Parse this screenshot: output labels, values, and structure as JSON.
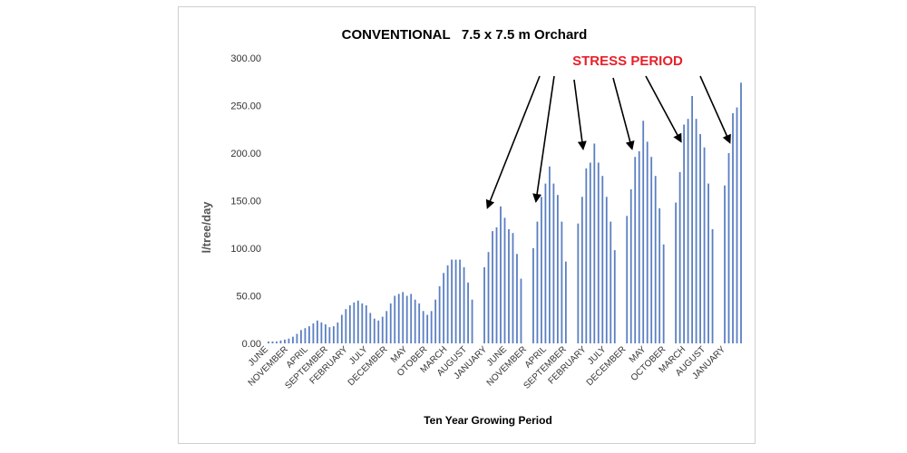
{
  "chart_data": {
    "type": "bar",
    "title": "CONVENTIONAL   7.5 x 7.5 m Orchard",
    "xlabel": "Ten Year Growing Period",
    "ylabel": "l/tree/day",
    "ylim": [
      0,
      300
    ],
    "yticks": [
      "0.00",
      "50.00",
      "100.00",
      "150.00",
      "200.00",
      "250.00",
      "300.00"
    ],
    "grid": false,
    "legend": "none",
    "bar_color": "#5b7fc2",
    "xtick_labels": [
      "JUNE",
      "NOVEMBER",
      "APRIL",
      "SEPTEMBER",
      "FEBRUARY",
      "JULY",
      "DECEMBER",
      "MAY",
      "OTOBER",
      "MARCH",
      "AUGUST",
      "JANUARY",
      "JUNE",
      "NOVEMBER",
      "APRIL",
      "SEPTEMBER",
      "FEBRUARY",
      "JULY",
      "DECEMBER",
      "MAY",
      "OCTOBER",
      "MARCH",
      "AUGUST",
      "JANUARY"
    ],
    "values": [
      2,
      2,
      2,
      3,
      4,
      5,
      7,
      10,
      14,
      16,
      18,
      21,
      24,
      22,
      20,
      17,
      18,
      22,
      30,
      36,
      40,
      43,
      45,
      42,
      40,
      32,
      26,
      24,
      28,
      34,
      42,
      50,
      52,
      54,
      50,
      52,
      46,
      42,
      34,
      30,
      34,
      46,
      60,
      74,
      82,
      88,
      88,
      88,
      80,
      64,
      46,
      0,
      0,
      80,
      96,
      118,
      122,
      144,
      132,
      120,
      116,
      94,
      68,
      0,
      0,
      100,
      128,
      154,
      168,
      186,
      168,
      156,
      128,
      86,
      0,
      0,
      126,
      154,
      184,
      190,
      210,
      190,
      176,
      154,
      128,
      98,
      0,
      0,
      134,
      162,
      196,
      202,
      234,
      212,
      196,
      176,
      142,
      104,
      0,
      0,
      148,
      180,
      230,
      236,
      260,
      236,
      220,
      206,
      168,
      120,
      0,
      0,
      166,
      200,
      242,
      248,
      274
    ],
    "annotation": {
      "text": "STRESS PERIOD",
      "color": "#e8202a",
      "arrow_targets_index": [
        52,
        63,
        75,
        87,
        99,
        111
      ]
    }
  }
}
